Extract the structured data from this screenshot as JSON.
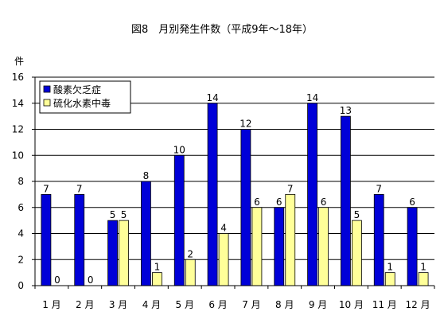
{
  "chart_data": {
    "type": "bar",
    "title": "図8　月別発生件数（平成9年〜18年）",
    "ylabel": "件",
    "xlabel": "",
    "ylim": [
      0,
      16
    ],
    "yticks": [
      0,
      2,
      4,
      6,
      8,
      10,
      12,
      14,
      16
    ],
    "grid": true,
    "legend_position": "top-left",
    "categories": [
      "1 月",
      "2 月",
      "3 月",
      "4 月",
      "5 月",
      "6 月",
      "7 月",
      "8 月",
      "9 月",
      "10 月",
      "11 月",
      "12 月"
    ],
    "series": [
      {
        "name": "酸素欠乏症",
        "color": "#0000d8",
        "values": [
          7,
          7,
          5,
          8,
          10,
          14,
          12,
          6,
          14,
          13,
          7,
          6
        ]
      },
      {
        "name": "硫化水素中毒",
        "color": "#ffff99",
        "values": [
          0,
          0,
          5,
          1,
          2,
          4,
          6,
          7,
          6,
          5,
          1,
          1
        ]
      }
    ]
  }
}
